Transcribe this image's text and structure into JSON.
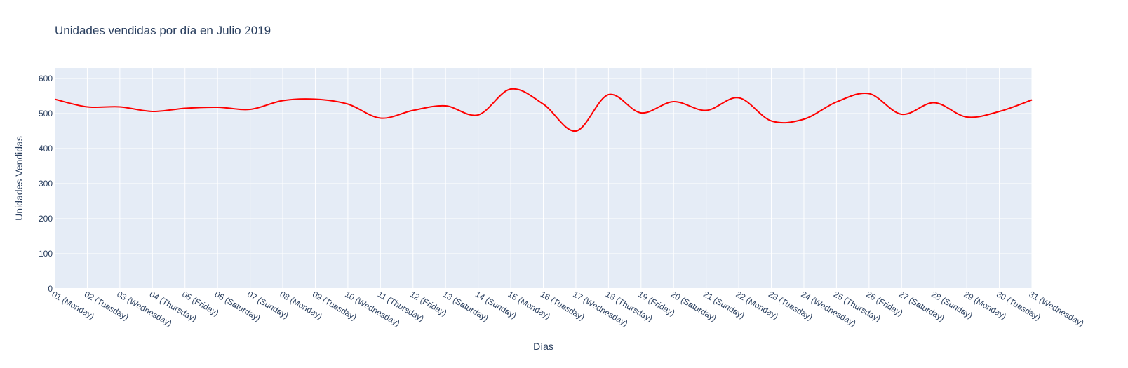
{
  "chart_data": {
    "type": "line",
    "title": "Unidades vendidas por día en Julio 2019",
    "xlabel": "Días",
    "ylabel": "Unidades Vendidas",
    "ylim": [
      0,
      630
    ],
    "yticks": [
      "0",
      "100",
      "200",
      "300",
      "400",
      "500",
      "600"
    ],
    "grid": true,
    "line_shape": "spline",
    "colors": {
      "line": "#ff0000",
      "plot_bg": "#e5ecf6",
      "grid": "#ffffff",
      "text": "#2a3f5f"
    },
    "categories": [
      "01 (Monday)",
      "02 (Tuesday)",
      "03 (Wednesday)",
      "04 (Thursday)",
      "05 (Friday)",
      "06 (Saturday)",
      "07 (Sunday)",
      "08 (Monday)",
      "09 (Tuesday)",
      "10 (Wednesday)",
      "11 (Thursday)",
      "12 (Friday)",
      "13 (Saturday)",
      "14 (Sunday)",
      "15 (Monday)",
      "16 (Tuesday)",
      "17 (Wednesday)",
      "18 (Thursday)",
      "19 (Friday)",
      "20 (Saturday)",
      "21 (Sunday)",
      "22 (Monday)",
      "23 (Tuesday)",
      "24 (Wednesday)",
      "25 (Thursday)",
      "26 (Friday)",
      "27 (Saturday)",
      "28 (Sunday)",
      "29 (Monday)",
      "30 (Tuesday)",
      "31 (Wednesday)"
    ],
    "series": [
      {
        "values": [
          541,
          519,
          519,
          506,
          515,
          518,
          512,
          537,
          541,
          527,
          487,
          509,
          522,
          496,
          570,
          527,
          450,
          554,
          502,
          534,
          509,
          545,
          479,
          484,
          533,
          557,
          498,
          531,
          490,
          506,
          539
        ]
      }
    ]
  }
}
